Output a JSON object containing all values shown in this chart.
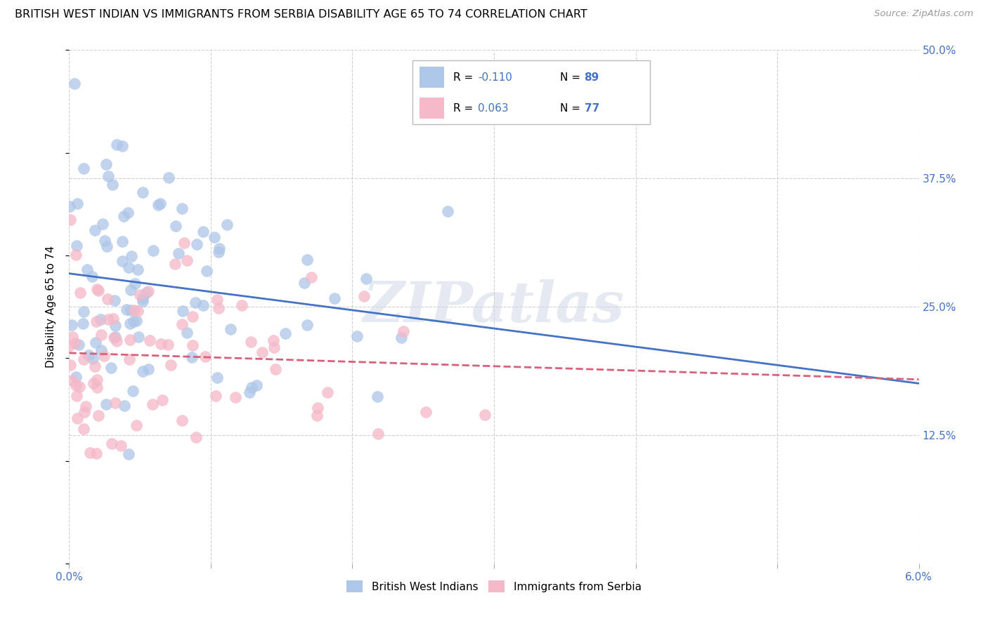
{
  "title": "BRITISH WEST INDIAN VS IMMIGRANTS FROM SERBIA DISABILITY AGE 65 TO 74 CORRELATION CHART",
  "source": "Source: ZipAtlas.com",
  "ylabel": "Disability Age 65 to 74",
  "xlim": [
    0.0,
    0.06
  ],
  "ylim": [
    0.0,
    0.5
  ],
  "xticks": [
    0.0,
    0.01,
    0.02,
    0.03,
    0.04,
    0.05,
    0.06
  ],
  "xtick_labels": [
    "0.0%",
    "",
    "",
    "",
    "",
    "",
    "6.0%"
  ],
  "ytick_labels": [
    "",
    "12.5%",
    "25.0%",
    "37.5%",
    "50.0%"
  ],
  "yticks": [
    0.0,
    0.125,
    0.25,
    0.375,
    0.5
  ],
  "blue_color": "#aec6e8",
  "pink_color": "#f4b8c8",
  "blue_line_color": "#4472c4",
  "pink_line_color": "#d9607a",
  "axis_label_color": "#4472c4",
  "legend_R_blue": "R = -0.110",
  "legend_N_blue": "N = 89",
  "legend_R_pink": "R = 0.063",
  "legend_N_pink": "N = 77",
  "legend_label_blue": "British West Indians",
  "legend_label_pink": "Immigrants from Serbia",
  "blue_R": -0.11,
  "blue_N": 89,
  "pink_R": 0.063,
  "pink_N": 77,
  "watermark": "ZIPatlas"
}
